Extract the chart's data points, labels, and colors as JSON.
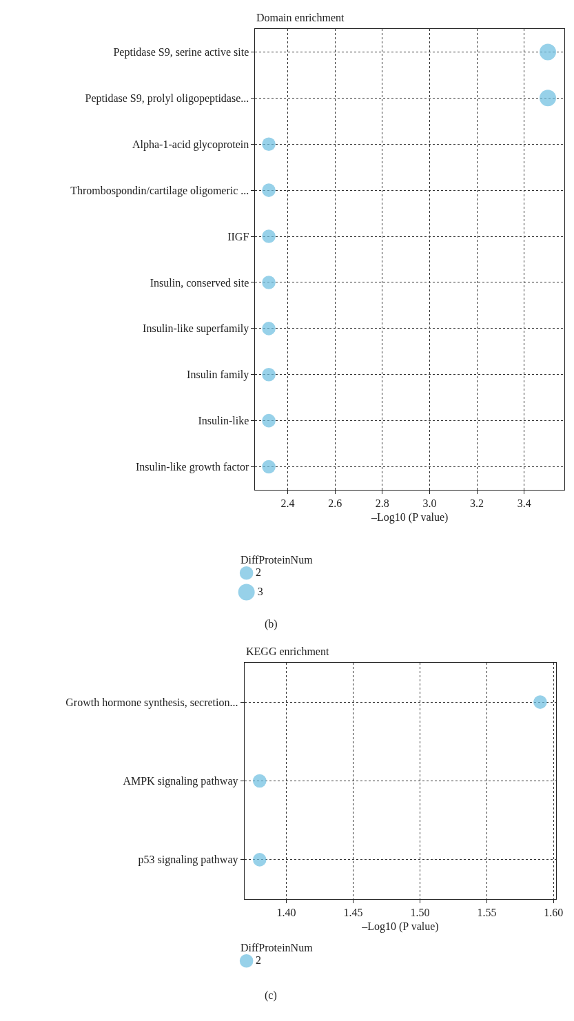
{
  "chart_data": [
    {
      "type": "bubble",
      "orientation": "horizontal",
      "title": "Domain enrichment",
      "xlabel": "–Log10 (P value)",
      "legend_title": "DiffProteinNum",
      "grid": true,
      "marker": "circle",
      "categories": [
        "Peptidase S9, serine active site",
        "Peptidase S9, prolyl oligopeptidase...",
        "Alpha-1-acid glycoprotein",
        "Thrombospondin/cartilage oligomeric ...",
        "IIGF",
        "Insulin, conserved site",
        "Insulin-like superfamily",
        "Insulin family",
        "Insulin-like",
        "Insulin-like growth factor"
      ],
      "series": [
        {
          "color": "#6bbde0",
          "values": [
            3.5,
            3.5,
            2.32,
            2.32,
            2.32,
            2.32,
            2.32,
            2.32,
            2.32,
            2.32
          ],
          "sizes": [
            3,
            3,
            2,
            2,
            2,
            2,
            2,
            2,
            2,
            2
          ]
        }
      ],
      "size_legend": [
        2,
        3
      ],
      "xlim": [
        2.263,
        3.57
      ],
      "xticks": [
        2.4,
        2.6,
        2.8,
        {
          "value": 3,
          "label": "3.0"
        },
        3.2,
        3.4
      ],
      "annotations": [
        "(b)"
      ]
    },
    {
      "type": "bubble",
      "orientation": "horizontal",
      "title": "KEGG enrichment",
      "xlabel": "–Log10 (P value)",
      "legend_title": "DiffProteinNum",
      "grid": true,
      "marker": "circle",
      "categories": [
        "Growth hormone synthesis, secretion...",
        "AMPK signaling pathway",
        "p53 signaling pathway"
      ],
      "series": [
        {
          "color": "#6bbde0",
          "values": [
            1.59,
            1.38,
            1.38
          ],
          "sizes": [
            2,
            2,
            2
          ]
        }
      ],
      "size_legend": [
        2
      ],
      "xlim": [
        1.3686,
        1.602
      ],
      "xticks": [
        {
          "value": 1.4,
          "label": "1.40"
        },
        {
          "value": 1.45,
          "label": "1.45"
        },
        {
          "value": 1.5,
          "label": "1.50"
        },
        {
          "value": 1.55,
          "label": "1.55"
        },
        {
          "value": 1.6,
          "label": "1.60"
        }
      ],
      "annotations": [
        "(c)"
      ]
    }
  ]
}
